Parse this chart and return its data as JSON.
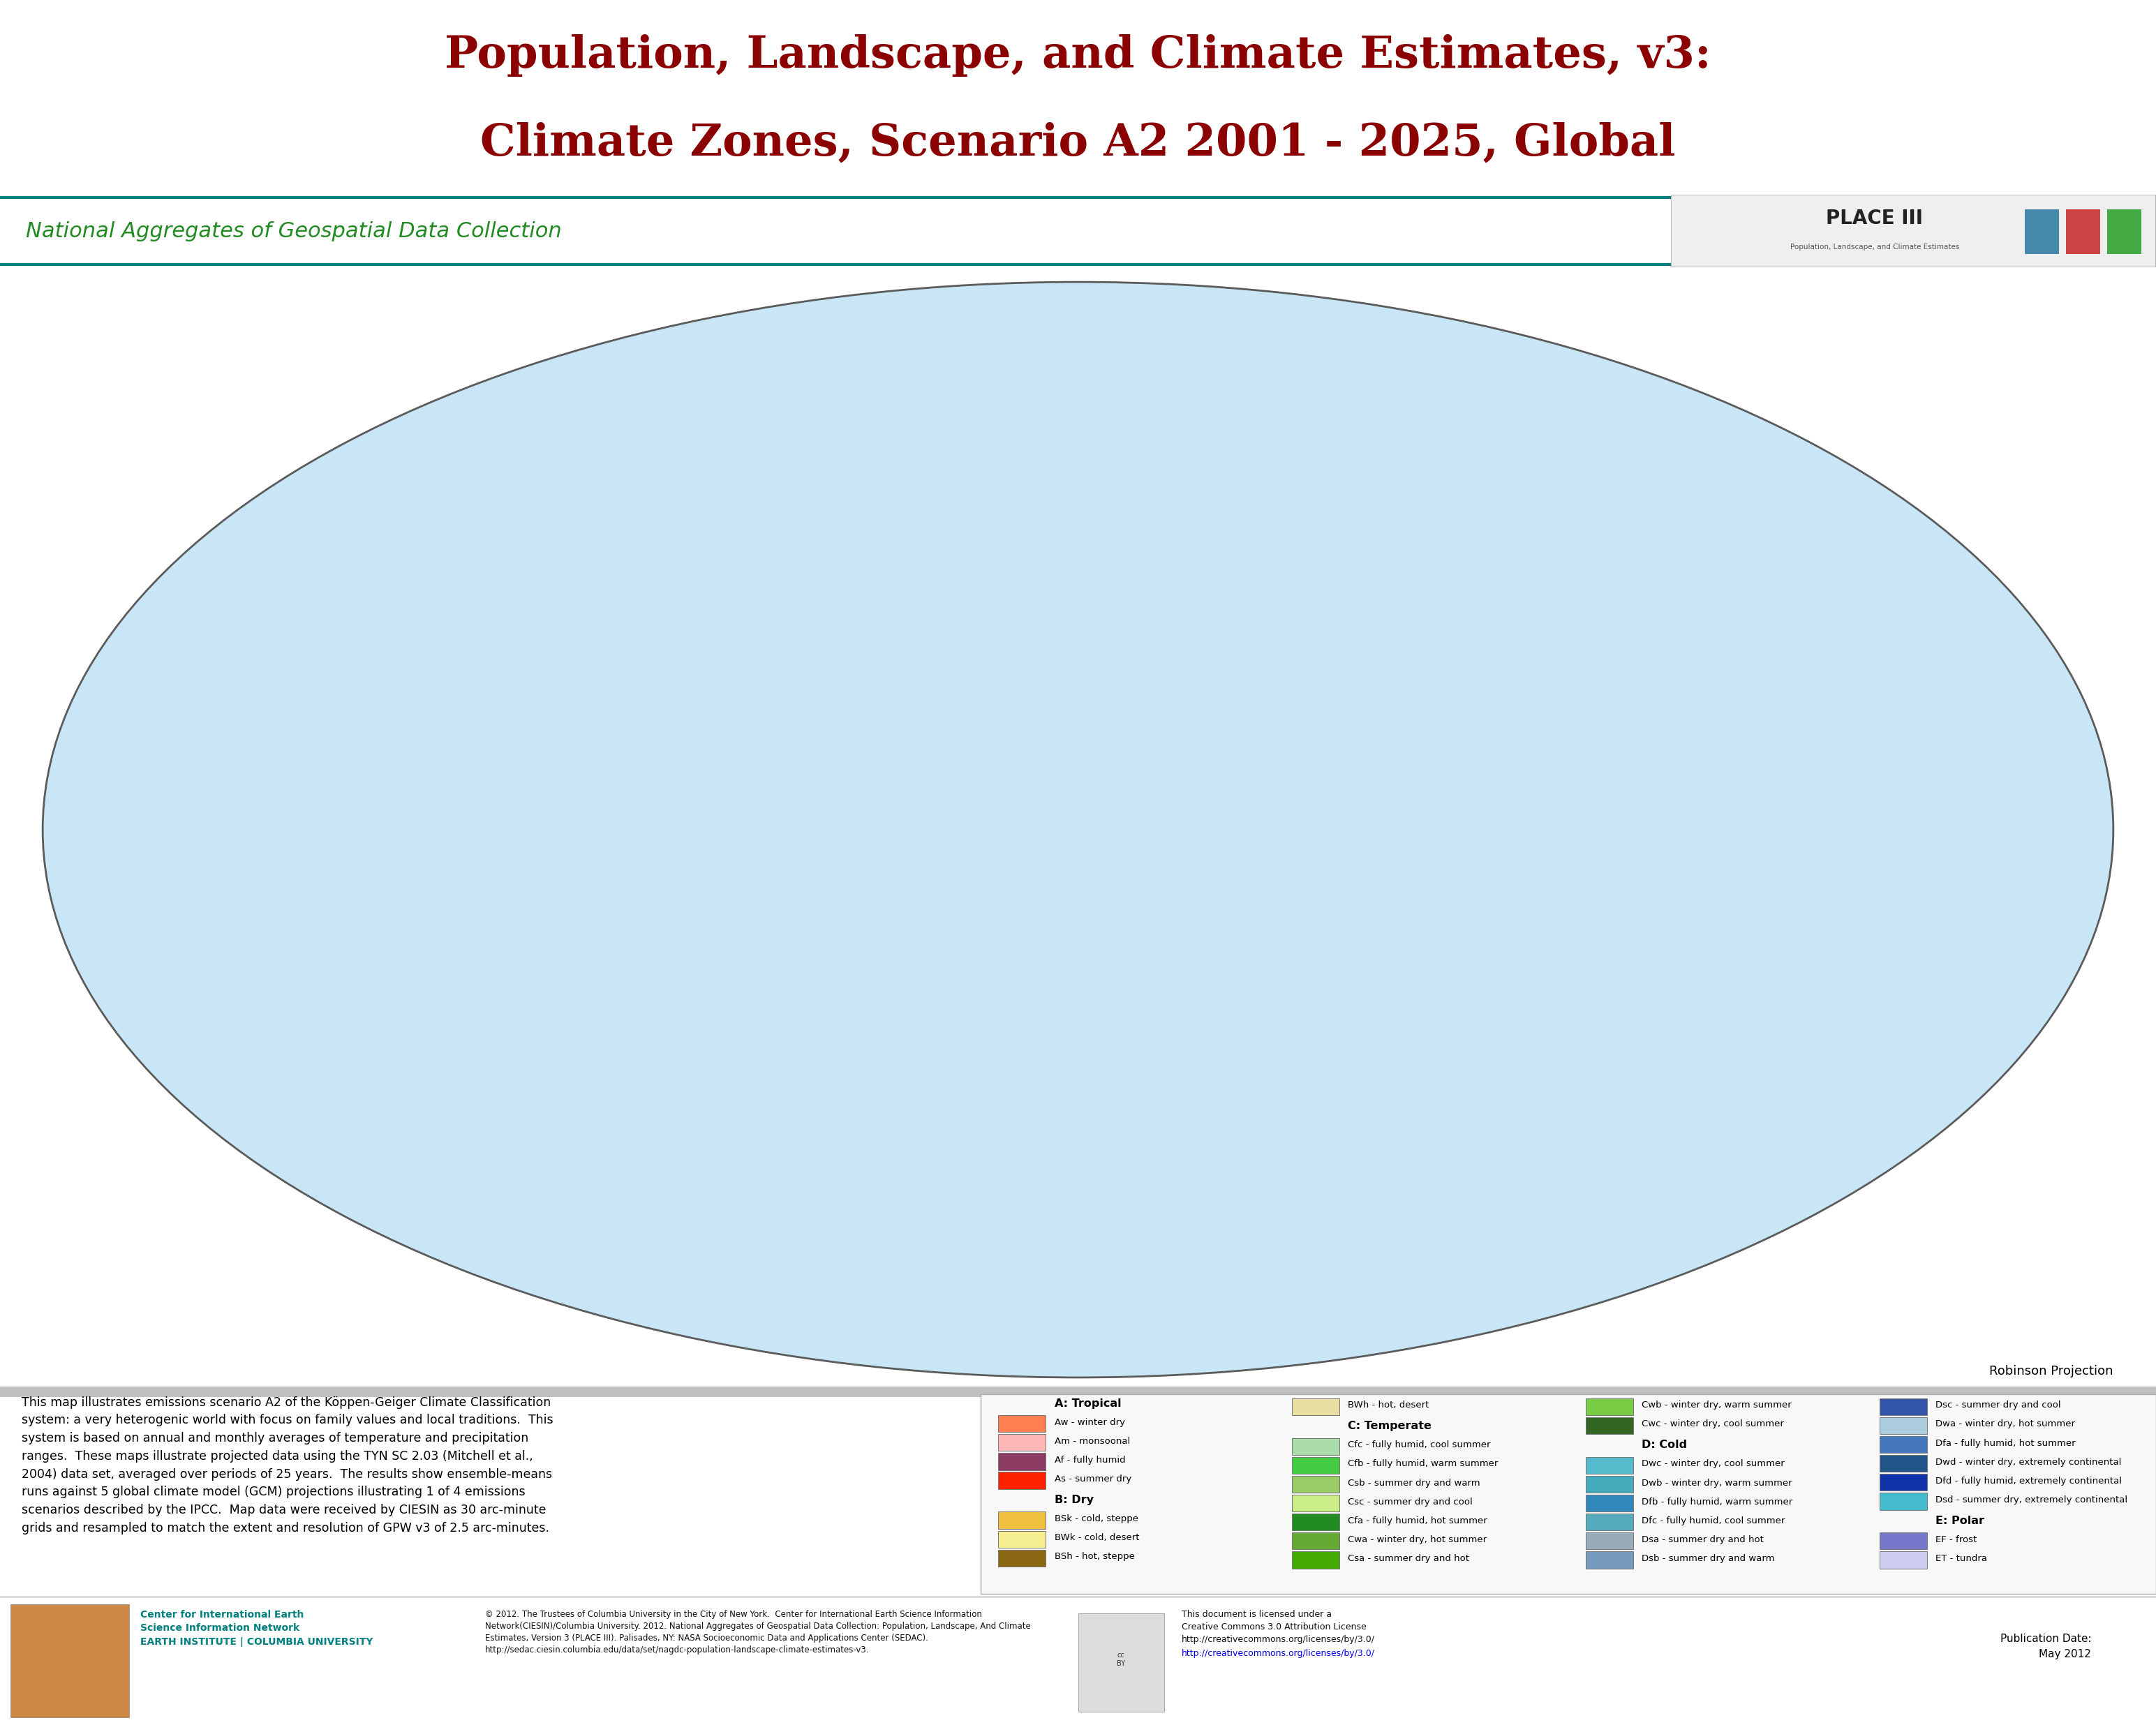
{
  "title_line1": "Population, Landscape, and Climate Estimates, v3:",
  "title_line2": "Climate Zones, Scenario A2 2001 - 2025, Global",
  "title_color": "#8B0000",
  "subtitle": "National Aggregates of Geospatial Data Collection",
  "subtitle_color": "#228B22",
  "bg_color": "#FFFFFF",
  "map_ocean_color": "#C8E6F5",
  "teal_line_color": "#008080",
  "description_text": "This map illustrates emissions scenario A2 of the Köppen-Geiger Climate Classification\nsystem: a very heterogenic world with focus on family values and local traditions.  This\nsystem is based on annual and monthly averages of temperature and precipitation\nranges.  These maps illustrate projected data using the TYN SC 2.03 (Mitchell et al.,\n2004) data set, averaged over periods of 25 years.  The results show ensemble-means\nruns against 5 global climate model (GCM) projections illustrating 1 of 4 emissions\nscenarios described by the IPCC.  Map data were received by CIESIN as 30 arc-minute\ngrids and resampled to match the extent and resolution of GPW v3 of 2.5 arc-minutes.",
  "copyright_text": "© 2012. The Trustees of Columbia University in the City of New York.  Center for International Earth Science Information\nNetwork(CIESIN)/Columbia University. 2012. National Aggregates of Geospatial Data Collection: Population, Landscape, And Climate\nEstimates, Version 3 (PLACE III). Palisades, NY: NASA Socioeconomic Data and Applications Center (SEDAC).\nhttp://sedac.ciesin.columbia.edu/data/set/nagdc-population-landscape-climate-estimates-v3.",
  "cc_text": "This document is licensed under a\nCreative Commons 3.0 Attribution License\nhttp://creativecommons.org/licenses/by/3.0/",
  "publication_date": "Publication Date:\nMay 2012",
  "projection_label": "Robinson Projection",
  "ciesin_text": "Center for International Earth\nScience Information Network\nEARTH INSTITUTE | COLUMBIA UNIVERSITY",
  "ciesin_color": "#008080",
  "legend_cols": [
    {
      "sections": [
        {
          "title": "A: Tropical",
          "entries": [
            {
              "label": "Aw - winter dry",
              "color": "#FF7F50"
            },
            {
              "label": "Am - monsoonal",
              "color": "#FFB6B6"
            },
            {
              "label": "Af - fully humid",
              "color": "#8B3A62"
            },
            {
              "label": "As - summer dry",
              "color": "#FF2200"
            }
          ]
        },
        {
          "title": "B: Dry",
          "entries": [
            {
              "label": "BSk - cold, steppe",
              "color": "#F0C040"
            },
            {
              "label": "BWk - cold, desert",
              "color": "#F5EE90"
            },
            {
              "label": "BSh - hot, steppe",
              "color": "#8B6914"
            }
          ]
        }
      ]
    },
    {
      "sections": [
        {
          "title": null,
          "entries": [
            {
              "label": "BWh - hot, desert",
              "color": "#E8DFA0"
            }
          ]
        },
        {
          "title": "C: Temperate",
          "entries": [
            {
              "label": "Cfc - fully humid, cool summer",
              "color": "#AADDAA"
            },
            {
              "label": "Cfb - fully humid, warm summer",
              "color": "#44CC44"
            },
            {
              "label": "Csb - summer dry and warm",
              "color": "#99CC66"
            },
            {
              "label": "Csc - summer dry and cool",
              "color": "#CCEE88"
            },
            {
              "label": "Cfa - fully humid, hot summer",
              "color": "#228B22"
            },
            {
              "label": "Cwa - winter dry, hot summer",
              "color": "#66AA33"
            },
            {
              "label": "Csa - summer dry and hot",
              "color": "#44AA00"
            }
          ]
        }
      ]
    },
    {
      "sections": [
        {
          "title": null,
          "entries": [
            {
              "label": "Cwb - winter dry, warm summer",
              "color": "#77CC44"
            },
            {
              "label": "Cwc - winter dry, cool summer",
              "color": "#336622"
            }
          ]
        },
        {
          "title": "D: Cold",
          "entries": [
            {
              "label": "Dwc - winter dry, cool summer",
              "color": "#55BBCC"
            },
            {
              "label": "Dwb - winter dry, warm summer",
              "color": "#44AABC"
            },
            {
              "label": "Dfb - fully humid, warm summer",
              "color": "#3388BB"
            },
            {
              "label": "Dfc - fully humid, cool summer",
              "color": "#55AABB"
            },
            {
              "label": "Dsa - summer dry and hot",
              "color": "#99AABB"
            },
            {
              "label": "Dsb - summer dry and warm",
              "color": "#7799BB"
            }
          ]
        }
      ]
    },
    {
      "sections": [
        {
          "title": null,
          "entries": [
            {
              "label": "Dsc - summer dry and cool",
              "color": "#3355AA"
            },
            {
              "label": "Dwa - winter dry, hot summer",
              "color": "#AACCDD"
            },
            {
              "label": "Dfa - fully humid, hot summer",
              "color": "#4477BB"
            },
            {
              "label": "Dwd - winter dry, extremely continental",
              "color": "#225588"
            },
            {
              "label": "Dfd - fully humid, extremely continental",
              "color": "#1133AA"
            },
            {
              "label": "Dsd - summer dry, extremely continental",
              "color": "#44BBCC"
            }
          ]
        },
        {
          "title": "E: Polar",
          "entries": [
            {
              "label": "EF - frost",
              "color": "#7777CC"
            },
            {
              "label": "ET - tundra",
              "color": "#CCCCEE"
            }
          ]
        }
      ]
    }
  ]
}
